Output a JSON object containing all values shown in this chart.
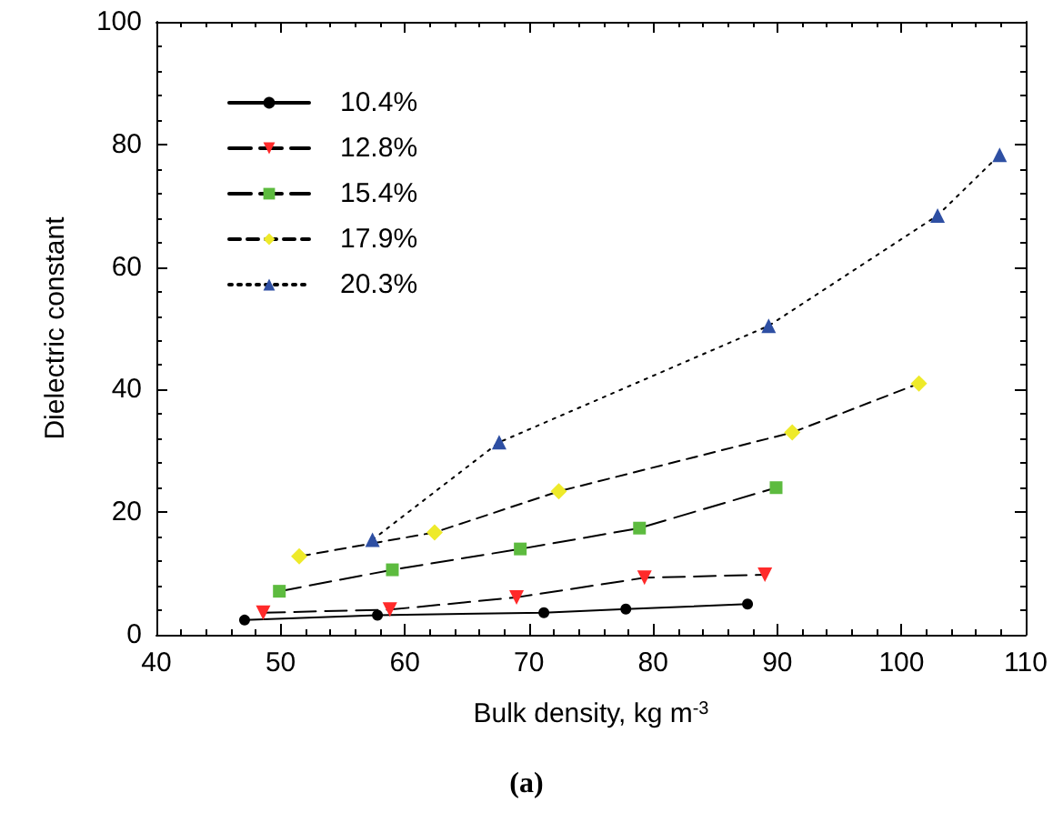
{
  "chart_data": {
    "type": "line",
    "xlabel": "Bulk density, kg m$^{-3}$",
    "ylabel": "Dielectric constant",
    "annotations": [
      "(a)"
    ],
    "xlim": [
      40,
      110
    ],
    "xticks": [
      40,
      50,
      60,
      70,
      80,
      90,
      100,
      110
    ],
    "ylim": [
      0,
      100
    ],
    "yticks": [
      0,
      20,
      40,
      60,
      80,
      100
    ],
    "grid": false,
    "legend": "top left",
    "series": [
      {
        "name": "10.4%",
        "color": "#000000",
        "marker": "circle",
        "line_style": "solid",
        "x": [
          47.1,
          57.8,
          71.2,
          77.8,
          87.6
        ],
        "values": [
          2.4,
          3.2,
          3.6,
          4.2,
          5.0
        ]
      },
      {
        "name": "12.8%",
        "color": "#ff2a2a",
        "marker": "triangle-down",
        "line_style": "dashed",
        "x": [
          48.6,
          58.8,
          69.0,
          79.3,
          89.0
        ],
        "values": [
          3.6,
          4.1,
          6.1,
          9.3,
          9.8
        ]
      },
      {
        "name": "15.4%",
        "color": "#5dbb3f",
        "marker": "square",
        "line_style": "dashed",
        "x": [
          49.9,
          59.0,
          69.3,
          78.9,
          89.9
        ],
        "values": [
          7.1,
          10.6,
          14.0,
          17.4,
          24.0
        ]
      },
      {
        "name": "17.9%",
        "color": "#eeea2a",
        "marker": "diamond",
        "line_style": "dashed",
        "x": [
          51.5,
          62.4,
          72.4,
          91.2,
          101.4
        ],
        "values": [
          12.8,
          16.7,
          23.4,
          33.0,
          41.0
        ]
      },
      {
        "name": "20.3%",
        "color": "#2e4fa3",
        "marker": "triangle",
        "line_style": "dotted",
        "x": [
          57.4,
          67.6,
          89.3,
          102.9,
          107.9
        ],
        "values": [
          15.5,
          31.4,
          50.4,
          68.4,
          78.3
        ]
      }
    ]
  }
}
